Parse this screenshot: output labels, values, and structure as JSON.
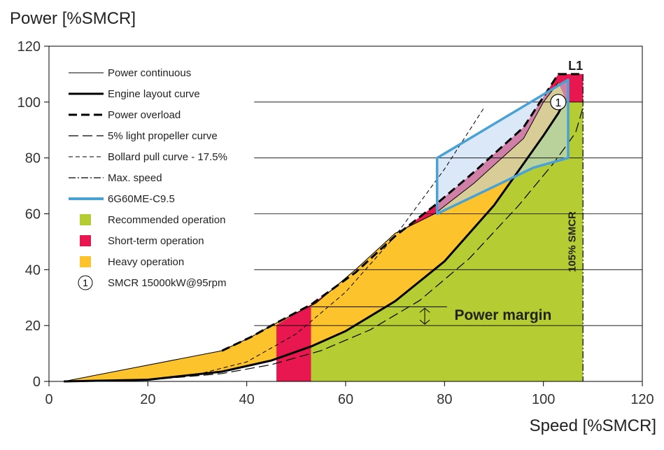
{
  "chart_data": {
    "type": "area",
    "ylabel": "Power [%SMCR]",
    "xlabel": "Speed [%SMCR]",
    "xlim": [
      0,
      120
    ],
    "ylim": [
      0,
      120
    ],
    "xticks": [
      "0",
      "20",
      "40",
      "60",
      "80",
      "100",
      "120"
    ],
    "yticks": [
      "0",
      "20",
      "40",
      "60",
      "80",
      "100",
      "120"
    ],
    "colors": {
      "recommended": "#b5cc33",
      "short_term": "#e8174f",
      "heavy": "#fdc32c",
      "engine_box": "#4aa1d3",
      "engine_box_fill": "#bcd6f0"
    },
    "legend": [
      {
        "key": "power_continuous",
        "label": "Power continuous"
      },
      {
        "key": "engine_layout",
        "label": "Engine layout curve"
      },
      {
        "key": "power_overload",
        "label": "Power overload"
      },
      {
        "key": "light_propeller",
        "label": "5% light propeller curve"
      },
      {
        "key": "bollard_pull",
        "label": "Bollard pull curve - 17.5%"
      },
      {
        "key": "max_speed",
        "label": "Max. speed"
      },
      {
        "key": "engine",
        "label": "6G60ME-C9.5"
      },
      {
        "key": "recommended",
        "label": "Recommended operation"
      },
      {
        "key": "short_term",
        "label": "Short-term operation"
      },
      {
        "key": "heavy",
        "label": "Heavy operation"
      },
      {
        "key": "smcr",
        "label": "SMCR 15000kW@95rpm",
        "symbol": "1"
      }
    ],
    "series": [
      {
        "name": "Engine layout curve",
        "points": [
          [
            3,
            0
          ],
          [
            20,
            0.6
          ],
          [
            35,
            3.5
          ],
          [
            45,
            7.5
          ],
          [
            53,
            12.5
          ],
          [
            60,
            18
          ],
          [
            70,
            28.7
          ],
          [
            80,
            43
          ],
          [
            90,
            63
          ],
          [
            100,
            88
          ],
          [
            103,
            96
          ],
          [
            104.5,
            101
          ]
        ]
      },
      {
        "name": "5% light propeller curve",
        "points": [
          [
            3,
            0
          ],
          [
            20,
            0.5
          ],
          [
            35,
            2.8
          ],
          [
            45,
            6
          ],
          [
            55,
            11
          ],
          [
            65,
            18.5
          ],
          [
            75,
            29
          ],
          [
            85,
            44
          ],
          [
            95,
            63
          ],
          [
            102,
            78
          ],
          [
            106.5,
            89
          ],
          [
            108,
            98
          ]
        ]
      },
      {
        "name": "Bollard pull curve - 17.5%",
        "points": [
          [
            3,
            0
          ],
          [
            20,
            0.8
          ],
          [
            30,
            2.5
          ],
          [
            40,
            7
          ],
          [
            50,
            17
          ],
          [
            60,
            32
          ],
          [
            70,
            52
          ],
          [
            80,
            76
          ],
          [
            88,
            98
          ]
        ]
      },
      {
        "name": "Power continuous",
        "points": [
          [
            3,
            0
          ],
          [
            35,
            11
          ],
          [
            41,
            16
          ],
          [
            45,
            20
          ],
          [
            54,
            28
          ],
          [
            62,
            40
          ],
          [
            70,
            53
          ],
          [
            78,
            60
          ],
          [
            86,
            71
          ],
          [
            96,
            87
          ],
          [
            100,
            100
          ],
          [
            103,
            107
          ]
        ]
      },
      {
        "name": "Power overload",
        "points": [
          [
            35,
            11
          ],
          [
            41,
            16
          ],
          [
            45,
            20
          ],
          [
            53,
            27.5
          ],
          [
            62,
            39
          ],
          [
            70,
            52
          ],
          [
            78,
            63
          ],
          [
            86,
            75
          ],
          [
            96,
            91
          ],
          [
            103,
            110
          ],
          [
            108,
            110
          ]
        ]
      },
      {
        "name": "Max. speed",
        "points": [
          [
            108,
            110
          ],
          [
            108,
            0
          ]
        ]
      },
      {
        "name": "6G60ME-C9.5",
        "points": [
          [
            78.5,
            60
          ],
          [
            78.5,
            80
          ],
          [
            105,
            108
          ],
          [
            105,
            80
          ],
          [
            98,
            76.5
          ],
          [
            78.5,
            60
          ]
        ]
      }
    ],
    "annotations": {
      "l1": "L1",
      "smcr_marker": "1",
      "smcr_point": [
        103,
        100
      ],
      "vertical_label": "105% SMCR",
      "power_margin": "Power margin",
      "power_margin_levels": [
        20,
        26.7
      ]
    }
  }
}
